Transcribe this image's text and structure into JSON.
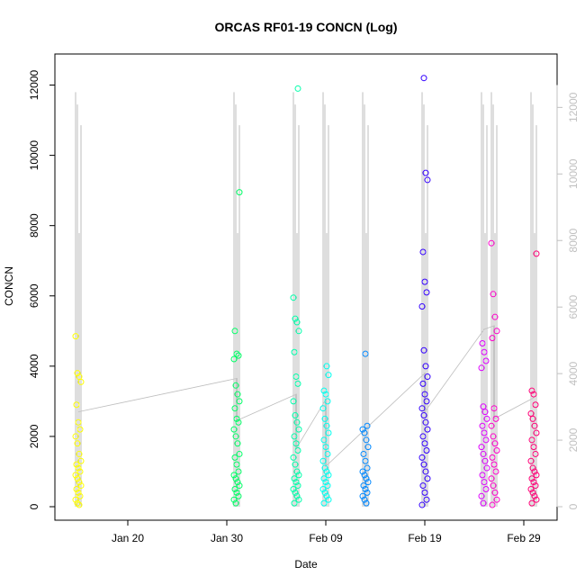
{
  "chart_data": {
    "type": "scatter",
    "title": "ORCAS RF01-19 CONCN (Log)",
    "xlabel": "Date",
    "ylabel": "CONCN",
    "x_ticks": [
      "Jan 20",
      "Jan 30",
      "Feb 09",
      "Feb 19",
      "Feb 29"
    ],
    "x_tick_dates": [
      "2016-01-20",
      "2016-01-30",
      "2016-02-09",
      "2016-02-19",
      "2016-02-29"
    ],
    "xlim": [
      "2016-01-14",
      "2016-03-02"
    ],
    "ylim": [
      0,
      12500
    ],
    "y_ticks": [
      0,
      2000,
      4000,
      6000,
      8000,
      10000,
      12000
    ],
    "y_ticks_right": [
      0,
      2000,
      4000,
      6000,
      8000,
      10000,
      12000
    ],
    "y_right_color": "#c0c0c0",
    "line_color": "#bebebe",
    "grid": false,
    "legend": "none",
    "flights": [
      {
        "date": "2016-01-15",
        "color": "#ffff00",
        "y_max": 4850,
        "points": [
          4850,
          3800,
          3700,
          3550,
          2900,
          2400,
          2200,
          2000,
          1800,
          1500,
          1300,
          1200,
          1100,
          1000,
          900,
          800,
          700,
          600,
          500,
          400,
          300,
          200,
          100,
          50
        ]
      },
      {
        "date": "2016-01-31",
        "color": "#00ff66",
        "y_max": 8950,
        "points": [
          8950,
          5000,
          4350,
          4300,
          4200,
          3450,
          3200,
          3000,
          2800,
          2500,
          2400,
          2200,
          2000,
          1800,
          1500,
          1400,
          1200,
          1000,
          900,
          800,
          700,
          600,
          500,
          400,
          300,
          200,
          100
        ]
      },
      {
        "date": "2016-02-06",
        "color": "#00ffaa",
        "y_max": 11900,
        "points": [
          11900,
          5950,
          5350,
          5250,
          5000,
          4400,
          3700,
          3500,
          3000,
          2600,
          2400,
          2200,
          2000,
          1800,
          1600,
          1400,
          1200,
          1000,
          900,
          800,
          700,
          600,
          500,
          400,
          300,
          200,
          100
        ]
      },
      {
        "date": "2016-02-09",
        "color": "#00ffee",
        "y_max": 4000,
        "points": [
          4000,
          3750,
          3300,
          3200,
          3000,
          2800,
          2500,
          2300,
          2100,
          1900,
          1700,
          1500,
          1300,
          1100,
          1000,
          900,
          800,
          700,
          600,
          500,
          400,
          300,
          200,
          100
        ]
      },
      {
        "date": "2016-02-13",
        "color": "#0088ff",
        "y_max": 4350,
        "points": [
          4350,
          2300,
          2200,
          2100,
          1900,
          1700,
          1500,
          1300,
          1100,
          1000,
          900,
          800,
          700,
          600,
          500,
          400,
          300,
          200,
          100
        ]
      },
      {
        "date": "2016-02-19",
        "color": "#3300ff",
        "y_max": 12200,
        "points": [
          12200,
          9500,
          9300,
          7250,
          6400,
          6100,
          5700,
          4450,
          4000,
          3700,
          3500,
          3200,
          3000,
          2800,
          2600,
          2400,
          2200,
          2000,
          1800,
          1600,
          1400,
          1200,
          1000,
          800,
          600,
          400,
          200,
          50
        ]
      },
      {
        "date": "2016-02-25",
        "color": "#dd00ff",
        "y_max": 4650,
        "points": [
          4650,
          4400,
          4150,
          3950,
          2850,
          2700,
          2500,
          2300,
          2100,
          1900,
          1700,
          1500,
          1300,
          1100,
          900,
          700,
          500,
          300,
          100
        ]
      },
      {
        "date": "2016-02-26",
        "color": "#ff00cc",
        "y_max": 7500,
        "points": [
          7500,
          6050,
          5400,
          5000,
          4800,
          2800,
          2500,
          2300,
          2000,
          1800,
          1600,
          1400,
          1200,
          1000,
          800,
          600,
          400,
          200,
          50
        ]
      },
      {
        "date": "2016-03-01",
        "color": "#ff0077",
        "y_max": 7200,
        "points": [
          7200,
          3300,
          3200,
          2900,
          2650,
          2500,
          2300,
          2100,
          1900,
          1700,
          1500,
          1300,
          1100,
          1000,
          900,
          800,
          700,
          600,
          500,
          400,
          300,
          200,
          100
        ]
      }
    ],
    "connector": [
      {
        "date": "2016-01-15",
        "y": 2700
      },
      {
        "date": "2016-01-31",
        "y": 3650
      },
      {
        "date": "2016-01-31",
        "y": 2450
      },
      {
        "date": "2016-02-06",
        "y": 3200
      },
      {
        "date": "2016-02-06",
        "y": 1650
      },
      {
        "date": "2016-02-09",
        "y": 3050
      },
      {
        "date": "2016-02-09",
        "y": 1150
      },
      {
        "date": "2016-02-19",
        "y": 3800
      },
      {
        "date": "2016-02-19",
        "y": 2700
      },
      {
        "date": "2016-02-25",
        "y": 5050
      },
      {
        "date": "2016-02-26",
        "y": 5150
      },
      {
        "date": "2016-02-26",
        "y": 2500
      },
      {
        "date": "2016-03-01",
        "y": 3100
      }
    ]
  }
}
